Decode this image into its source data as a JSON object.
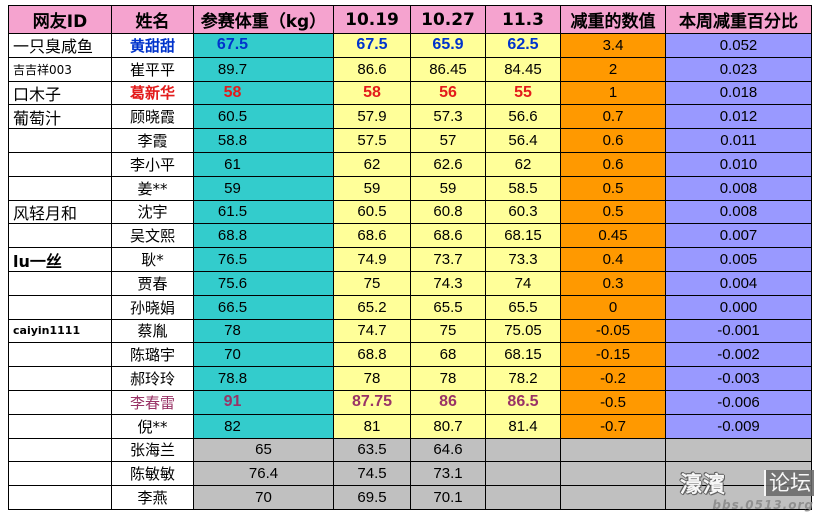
{
  "table": {
    "headers": [
      "网友ID",
      "姓名",
      "参赛体重（kg）",
      "10.19",
      "10.27",
      "11.3",
      "减重的数值",
      "本周减重百分比"
    ],
    "rows": [
      {
        "netizen_id": "一只臭咸鱼",
        "name": "黄甜甜",
        "start_weight": "67.5",
        "weight_10_19": "67.5",
        "weight_10_27": "65.9",
        "weight_11_3": "62.5",
        "loss": "3.4",
        "weekly_pct": "0.052"
      },
      {
        "netizen_id": "吉吉祥003",
        "name": "崔平平",
        "start_weight": "89.7",
        "weight_10_19": "86.6",
        "weight_10_27": "86.45",
        "weight_11_3": "84.45",
        "loss": "2",
        "weekly_pct": "0.023"
      },
      {
        "netizen_id": "口木子",
        "name": "葛新华",
        "start_weight": "58",
        "weight_10_19": "58",
        "weight_10_27": "56",
        "weight_11_3": "55",
        "loss": "1",
        "weekly_pct": "0.018"
      },
      {
        "netizen_id": "葡萄汁",
        "name": "顾晓霞",
        "start_weight": "60.5",
        "weight_10_19": "57.9",
        "weight_10_27": "57.3",
        "weight_11_3": "56.6",
        "loss": "0.7",
        "weekly_pct": "0.012"
      },
      {
        "netizen_id": "",
        "name": "李霞",
        "start_weight": "58.8",
        "weight_10_19": "57.5",
        "weight_10_27": "57",
        "weight_11_3": "56.4",
        "loss": "0.6",
        "weekly_pct": "0.011"
      },
      {
        "netizen_id": "",
        "name": "李小平",
        "start_weight": "61",
        "weight_10_19": "62",
        "weight_10_27": "62.6",
        "weight_11_3": "62",
        "loss": "0.6",
        "weekly_pct": "0.010"
      },
      {
        "netizen_id": "",
        "name": "姜**",
        "start_weight": "59",
        "weight_10_19": "59",
        "weight_10_27": "59",
        "weight_11_3": "58.5",
        "loss": "0.5",
        "weekly_pct": "0.008"
      },
      {
        "netizen_id": "风轻月和",
        "name": "沈宇",
        "start_weight": "61.5",
        "weight_10_19": "60.5",
        "weight_10_27": "60.8",
        "weight_11_3": "60.3",
        "loss": "0.5",
        "weekly_pct": "0.008"
      },
      {
        "netizen_id": "",
        "name": "吴文熙",
        "start_weight": "68.8",
        "weight_10_19": "68.6",
        "weight_10_27": "68.6",
        "weight_11_3": "68.15",
        "loss": "0.45",
        "weekly_pct": "0.007"
      },
      {
        "netizen_id": "lu一丝",
        "name": "耿*",
        "start_weight": "76.5",
        "weight_10_19": "74.9",
        "weight_10_27": "73.7",
        "weight_11_3": "73.3",
        "loss": "0.4",
        "weekly_pct": "0.005"
      },
      {
        "netizen_id": "",
        "name": "贾春",
        "start_weight": "75.6",
        "weight_10_19": "75",
        "weight_10_27": "74.3",
        "weight_11_3": "74",
        "loss": "0.3",
        "weekly_pct": "0.004"
      },
      {
        "netizen_id": "",
        "name": "孙晓娟",
        "start_weight": "66.5",
        "weight_10_19": "65.2",
        "weight_10_27": "65.5",
        "weight_11_3": "65.5",
        "loss": "0",
        "weekly_pct": "0.000"
      },
      {
        "netizen_id": "caiyin1111",
        "name": "蔡胤",
        "start_weight": "78",
        "weight_10_19": "74.7",
        "weight_10_27": "75",
        "weight_11_3": "75.05",
        "loss": "-0.05",
        "weekly_pct": "-0.001"
      },
      {
        "netizen_id": "",
        "name": "陈璐宇",
        "start_weight": "70",
        "weight_10_19": "68.8",
        "weight_10_27": "68",
        "weight_11_3": "68.15",
        "loss": "-0.15",
        "weekly_pct": "-0.002"
      },
      {
        "netizen_id": "",
        "name": "郝玲玲",
        "start_weight": "78.8",
        "weight_10_19": "78",
        "weight_10_27": "78",
        "weight_11_3": "78.2",
        "loss": "-0.2",
        "weekly_pct": "-0.003"
      },
      {
        "netizen_id": "",
        "name": "李春雷",
        "start_weight": "91",
        "weight_10_19": "87.75",
        "weight_10_27": "86",
        "weight_11_3": "86.5",
        "loss": "-0.5",
        "weekly_pct": "-0.006"
      },
      {
        "netizen_id": "",
        "name": "倪**",
        "start_weight": "82",
        "weight_10_19": "81",
        "weight_10_27": "80.7",
        "weight_11_3": "81.4",
        "loss": "-0.7",
        "weekly_pct": "-0.009"
      },
      {
        "netizen_id": "",
        "name": "张海兰",
        "start_weight": "65",
        "weight_10_19": "63.5",
        "weight_10_27": "64.6",
        "weight_11_3": "",
        "loss": "",
        "weekly_pct": ""
      },
      {
        "netizen_id": "",
        "name": "陈敏敏",
        "start_weight": "76.4",
        "weight_10_19": "74.5",
        "weight_10_27": "73.1",
        "weight_11_3": "",
        "loss": "",
        "weekly_pct": ""
      },
      {
        "netizen_id": "",
        "name": "李燕",
        "start_weight": "70",
        "weight_10_19": "69.5",
        "weight_10_27": "70.1",
        "weight_11_3": "",
        "loss": "",
        "weekly_pct": ""
      }
    ]
  },
  "colors": {
    "header_bg": "#F5A3CF",
    "start_weight_bg": "#33CCCC",
    "weigh_in_bg": "#FFFF99",
    "loss_bg": "#FF9900",
    "pct_bg": "#9999FF",
    "pending_bg": "#C0C0C0",
    "highlight_blue": "#0033CC",
    "highlight_red": "#E31B1B",
    "highlight_purple": "#993366",
    "grid": "#000000"
  },
  "watermark": {
    "brand": "濠濱",
    "forum": "论坛",
    "url": "bbs.0513.org"
  }
}
